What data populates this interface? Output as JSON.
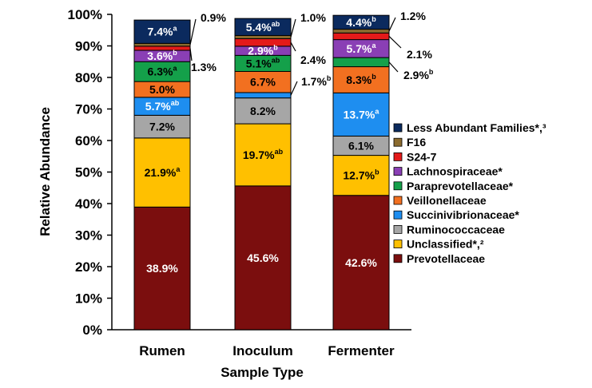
{
  "chart_data": {
    "type": "bar",
    "stacked": true,
    "title": "",
    "xlabel": "Sample Type",
    "ylabel": "Relative Abundance",
    "ylim": [
      0,
      100
    ],
    "yticks": [
      "0%",
      "10%",
      "20%",
      "30%",
      "40%",
      "50%",
      "60%",
      "70%",
      "80%",
      "90%",
      "100%"
    ],
    "categories": [
      "Rumen",
      "Inoculum",
      "Fermenter"
    ],
    "grid": false,
    "legend_position": "right",
    "series": [
      {
        "name": "Prevotellaceae",
        "color": "#7b0e0e",
        "values": [
          38.9,
          45.6,
          42.6
        ],
        "labels": [
          "38.9%",
          "45.6%",
          "42.6%"
        ],
        "sup": [
          "",
          "",
          ""
        ]
      },
      {
        "name": "Unclassified*,²",
        "color": "#ffc000",
        "values": [
          21.9,
          19.7,
          12.7
        ],
        "labels": [
          "21.9%",
          "19.7%",
          "12.7%"
        ],
        "sup": [
          "a",
          "ab",
          "b"
        ]
      },
      {
        "name": "Ruminococcaceae",
        "color": "#a6a6a6",
        "values": [
          7.2,
          8.2,
          6.1
        ],
        "labels": [
          "7.2%",
          "8.2%",
          "6.1%"
        ],
        "sup": [
          "",
          "",
          ""
        ]
      },
      {
        "name": "Succinivibrionaceae*",
        "color": "#1e8ef0",
        "values": [
          5.7,
          1.7,
          13.7
        ],
        "labels": [
          "5.7%",
          "1.7%",
          "13.7%"
        ],
        "sup": [
          "ab",
          "b",
          "a"
        ]
      },
      {
        "name": "Veillonellaceae",
        "color": "#f27020",
        "values": [
          5.0,
          6.7,
          8.3
        ],
        "labels": [
          "5.0%",
          "6.7%",
          "8.3%"
        ],
        "sup": [
          "",
          "",
          "b"
        ]
      },
      {
        "name": "Paraprevotellaceae*",
        "color": "#14a04a",
        "values": [
          6.3,
          5.1,
          2.9
        ],
        "labels": [
          "6.3%",
          "5.1%",
          "2.9%"
        ],
        "sup": [
          "a",
          "ab",
          "b"
        ]
      },
      {
        "name": "Lachnospiraceae*",
        "color": "#8a3fb5",
        "values": [
          3.6,
          2.9,
          5.7
        ],
        "labels": [
          "3.6%",
          "2.9%",
          "5.7%"
        ],
        "sup": [
          "b",
          "b",
          "a"
        ]
      },
      {
        "name": "S24-7",
        "color": "#e41a1a",
        "values": [
          1.3,
          2.4,
          2.1
        ],
        "labels": [
          "1.3%",
          "2.4%",
          "2.1%"
        ],
        "sup": [
          "",
          "",
          ""
        ]
      },
      {
        "name": "F16",
        "color": "#8b6b2e",
        "values": [
          0.9,
          1.0,
          1.2
        ],
        "labels": [
          "0.9%",
          "1.0%",
          "1.2%"
        ],
        "sup": [
          "",
          "",
          ""
        ]
      },
      {
        "name": "Less Abundant Families*,³",
        "color": "#0b2a5e",
        "values": [
          7.4,
          5.4,
          4.4
        ],
        "labels": [
          "7.4%",
          "5.4%",
          "4.4%"
        ],
        "sup": [
          "a",
          "ab",
          "b"
        ]
      }
    ]
  }
}
